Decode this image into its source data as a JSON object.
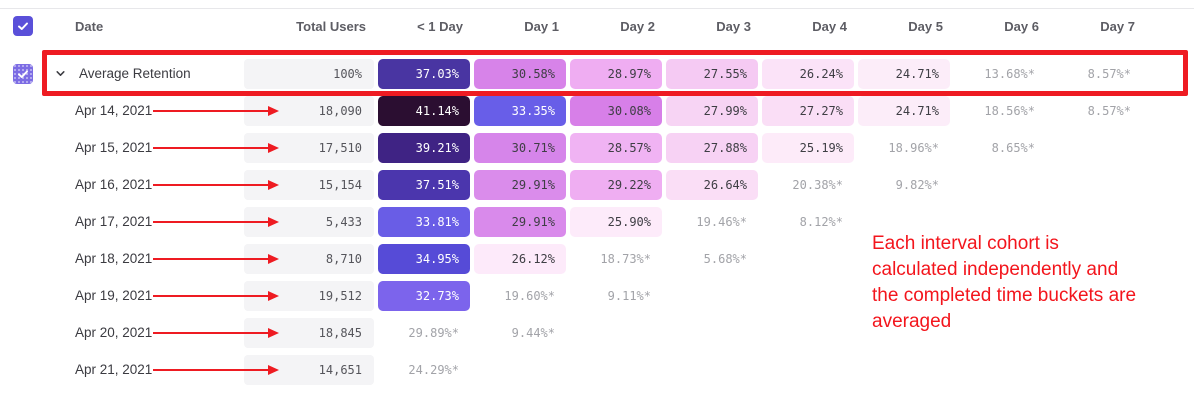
{
  "colors": {
    "annotation_red": "#ee1b22",
    "checkbox_purple": "#5a50d9",
    "neutral_cell_bg": "#f4f4f6",
    "gray_value_text": "#a2a3a8",
    "dark_value_text": "#3e3e44",
    "header_text": "#5d5d64"
  },
  "table": {
    "columns": [
      "Date",
      "Total Users",
      "< 1 Day",
      "Day 1",
      "Day 2",
      "Day 3",
      "Day 4",
      "Day 5",
      "Day 6",
      "Day 7"
    ],
    "select_all_checked": true,
    "rows": [
      {
        "label": "Average Retention",
        "is_average": true,
        "checked": true,
        "total": "100%",
        "cells": [
          {
            "v": "37.03%",
            "bg": "#4935a2",
            "fg": "#ffffff"
          },
          {
            "v": "30.58%",
            "bg": "#d783e9",
            "fg": "#3e3e44"
          },
          {
            "v": "28.97%",
            "bg": "#efadf2",
            "fg": "#3e3e44"
          },
          {
            "v": "27.55%",
            "bg": "#f5caf3",
            "fg": "#3e3e44"
          },
          {
            "v": "26.24%",
            "bg": "#fbe3f8",
            "fg": "#3e3e44"
          },
          {
            "v": "24.71%",
            "bg": "#fcedf9",
            "fg": "#3e3e44"
          },
          {
            "v": "13.68%*"
          },
          {
            "v": "8.57%*"
          }
        ]
      },
      {
        "label": "Apr 14, 2021",
        "total": "18,090",
        "cells": [
          {
            "v": "41.14%",
            "bg": "#2b0e31",
            "fg": "#ffffff"
          },
          {
            "v": "33.35%",
            "bg": "#685ee8",
            "fg": "#ffffff"
          },
          {
            "v": "30.08%",
            "bg": "#d77fe8",
            "fg": "#3e3e44"
          },
          {
            "v": "27.99%",
            "bg": "#f7d4f4",
            "fg": "#3e3e44"
          },
          {
            "v": "27.27%",
            "bg": "#fadef6",
            "fg": "#3e3e44"
          },
          {
            "v": "24.71%",
            "bg": "#fcedf9",
            "fg": "#3e3e44"
          },
          {
            "v": "18.56%*"
          },
          {
            "v": "8.57%*"
          }
        ]
      },
      {
        "label": "Apr 15, 2021",
        "total": "17,510",
        "cells": [
          {
            "v": "39.21%",
            "bg": "#3f2384",
            "fg": "#ffffff"
          },
          {
            "v": "30.71%",
            "bg": "#d685ea",
            "fg": "#3e3e44"
          },
          {
            "v": "28.57%",
            "bg": "#f0b3f3",
            "fg": "#3e3e44"
          },
          {
            "v": "27.88%",
            "bg": "#f7d2f4",
            "fg": "#3e3e44"
          },
          {
            "v": "25.19%",
            "bg": "#fdebf9",
            "fg": "#3e3e44"
          },
          {
            "v": "18.96%*"
          },
          {
            "v": "8.65%*"
          },
          null
        ]
      },
      {
        "label": "Apr 16, 2021",
        "total": "15,154",
        "cells": [
          {
            "v": "37.51%",
            "bg": "#4b36ad",
            "fg": "#ffffff"
          },
          {
            "v": "29.91%",
            "bg": "#da8ceb",
            "fg": "#3e3e44"
          },
          {
            "v": "29.22%",
            "bg": "#efaef2",
            "fg": "#3e3e44"
          },
          {
            "v": "26.64%",
            "bg": "#fadef6",
            "fg": "#3e3e44"
          },
          {
            "v": "20.38%*"
          },
          {
            "v": "9.82%*"
          },
          null,
          null
        ]
      },
      {
        "label": "Apr 17, 2021",
        "total": "5,433",
        "cells": [
          {
            "v": "33.81%",
            "bg": "#695de6",
            "fg": "#ffffff"
          },
          {
            "v": "29.91%",
            "bg": "#d98aeb",
            "fg": "#3e3e44"
          },
          {
            "v": "25.90%",
            "bg": "#fdebfa",
            "fg": "#3e3e44"
          },
          {
            "v": "19.46%*"
          },
          {
            "v": "8.12%*"
          },
          null,
          null,
          null
        ]
      },
      {
        "label": "Apr 18, 2021",
        "total": "8,710",
        "cells": [
          {
            "v": "34.95%",
            "bg": "#564bd7",
            "fg": "#ffffff"
          },
          {
            "v": "26.12%",
            "bg": "#fdeafa",
            "fg": "#3e3e44"
          },
          {
            "v": "18.73%*"
          },
          {
            "v": "5.68%*"
          },
          null,
          null,
          null,
          null
        ]
      },
      {
        "label": "Apr 19, 2021",
        "total": "19,512",
        "cells": [
          {
            "v": "32.73%",
            "bg": "#7c64ec",
            "fg": "#ffffff"
          },
          {
            "v": "19.60%*"
          },
          {
            "v": "9.11%*"
          },
          null,
          null,
          null,
          null,
          null
        ]
      },
      {
        "label": "Apr 20, 2021",
        "total": "18,845",
        "cells": [
          {
            "v": "29.89%*"
          },
          {
            "v": "9.44%*"
          },
          null,
          null,
          null,
          null,
          null,
          null
        ]
      },
      {
        "label": "Apr 21, 2021",
        "total": "14,651",
        "cells": [
          {
            "v": "24.29%*"
          },
          null,
          null,
          null,
          null,
          null,
          null,
          null
        ]
      }
    ]
  },
  "annotations": {
    "note_lines": [
      "Each interval cohort is",
      "calculated independently and",
      "the completed time buckets are",
      "averaged"
    ]
  }
}
